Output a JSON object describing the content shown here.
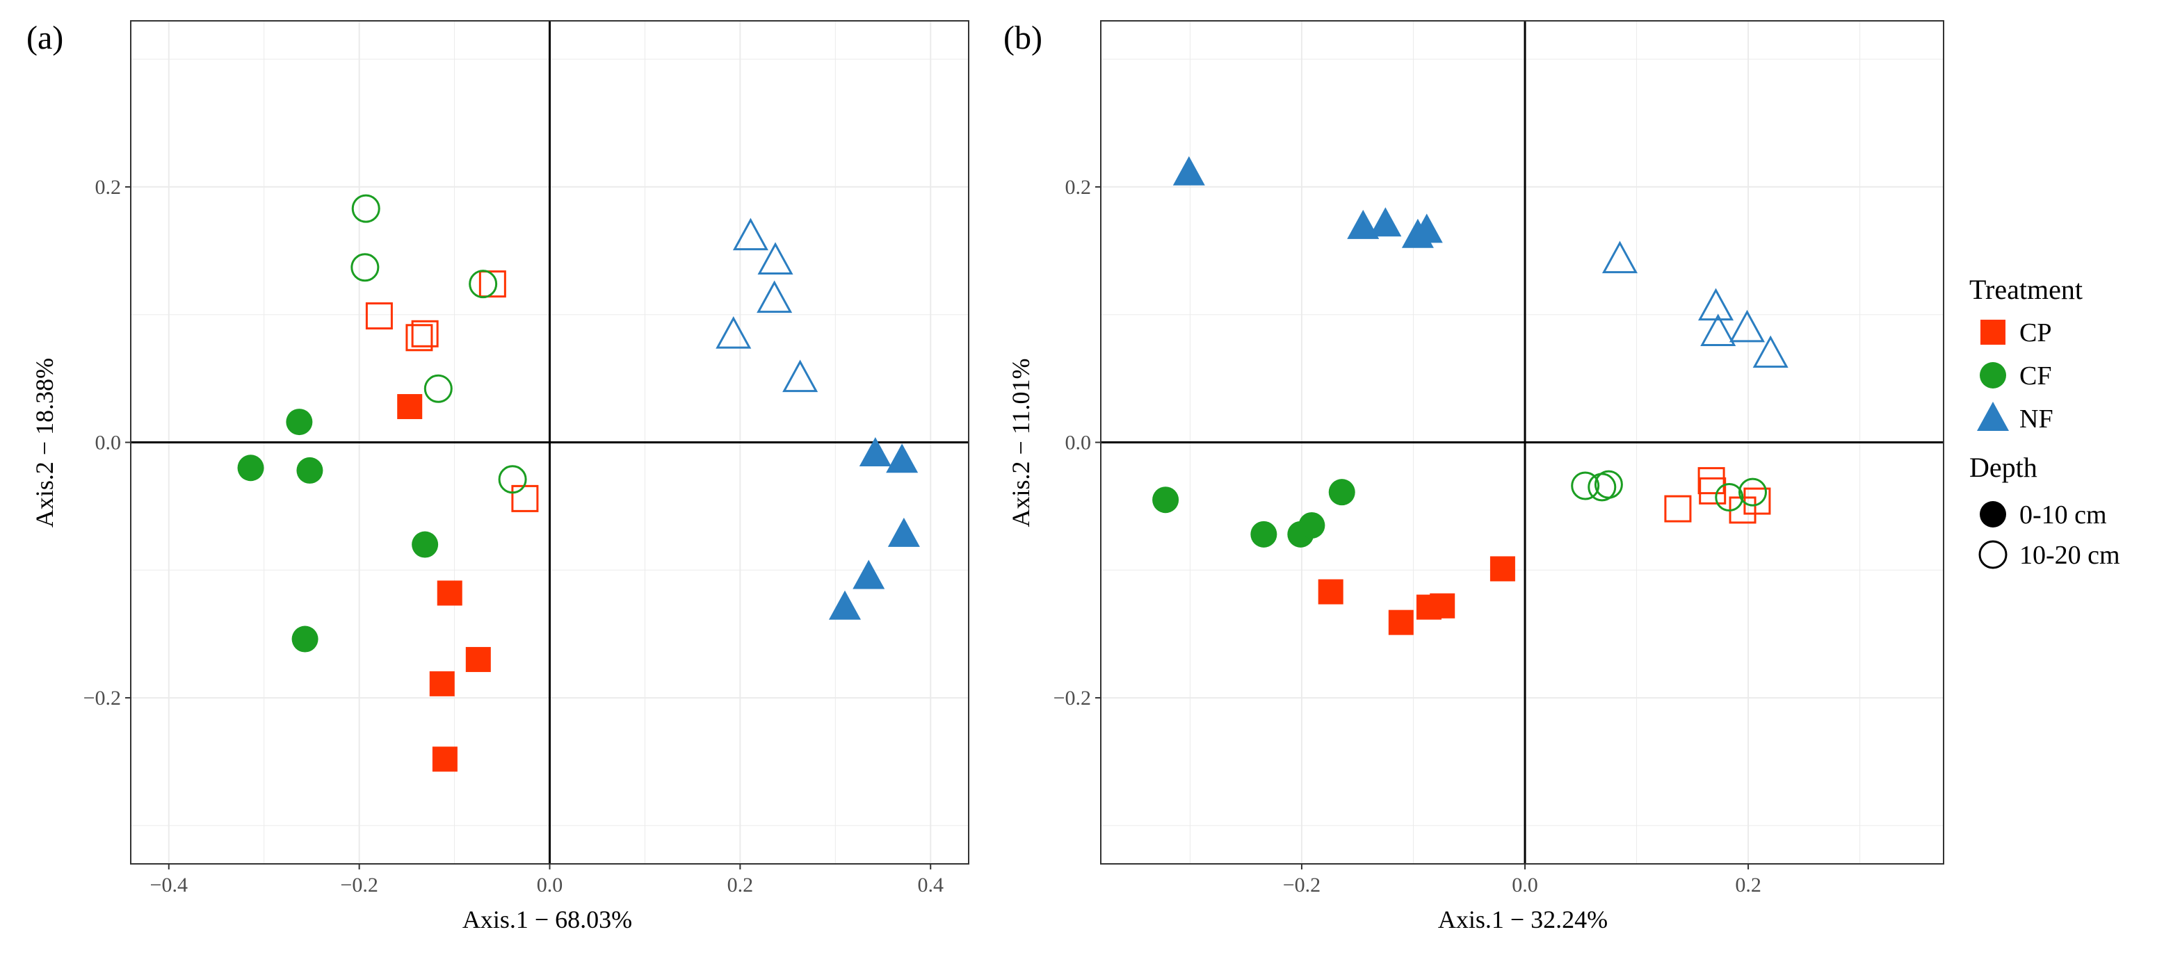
{
  "figure": {
    "treatment_colors": {
      "CP": "#FF3300",
      "CF": "#1B9E22",
      "NF": "#2B7EC1"
    },
    "legend": {
      "treatment_title": "Treatment",
      "treatments": [
        {
          "key": "CP",
          "label": "CP",
          "shape": "square"
        },
        {
          "key": "CF",
          "label": "CF",
          "shape": "circle"
        },
        {
          "key": "NF",
          "label": "NF",
          "shape": "triangle"
        }
      ],
      "depth_title": "Depth",
      "depths": [
        {
          "label": "0-10 cm",
          "filled": true
        },
        {
          "label": "10-20 cm",
          "filled": false
        }
      ]
    }
  },
  "chart_data": [
    {
      "type": "scatter",
      "panel_label": "(a)",
      "xlabel": "Axis.1 − 68.03%",
      "ylabel": "Axis.2 − 18.38%",
      "xlim": [
        -0.44,
        0.44
      ],
      "ylim": [
        -0.33,
        0.33
      ],
      "xticks": [
        -0.4,
        -0.2,
        0.0,
        0.2,
        0.4
      ],
      "xtick_labels": [
        "−0.4",
        "−0.2",
        "0.0",
        "0.2",
        "0.4"
      ],
      "yticks": [
        -0.2,
        0.0,
        0.2
      ],
      "ytick_labels": [
        "−0.2",
        "0.0",
        "0.2"
      ],
      "grid": true,
      "reference_lines": {
        "x": 0,
        "y": 0
      },
      "points": [
        {
          "treatment": "CP",
          "depth": "0-10 cm",
          "x": -0.147,
          "y": 0.028
        },
        {
          "treatment": "CP",
          "depth": "0-10 cm",
          "x": -0.105,
          "y": -0.118
        },
        {
          "treatment": "CP",
          "depth": "0-10 cm",
          "x": -0.075,
          "y": -0.17
        },
        {
          "treatment": "CP",
          "depth": "0-10 cm",
          "x": -0.113,
          "y": -0.189
        },
        {
          "treatment": "CP",
          "depth": "0-10 cm",
          "x": -0.11,
          "y": -0.248
        },
        {
          "treatment": "CP",
          "depth": "10-20 cm",
          "x": -0.179,
          "y": 0.099
        },
        {
          "treatment": "CP",
          "depth": "10-20 cm",
          "x": -0.137,
          "y": 0.082
        },
        {
          "treatment": "CP",
          "depth": "10-20 cm",
          "x": -0.131,
          "y": 0.085
        },
        {
          "treatment": "CP",
          "depth": "10-20 cm",
          "x": -0.06,
          "y": 0.124
        },
        {
          "treatment": "CP",
          "depth": "10-20 cm",
          "x": -0.026,
          "y": -0.044
        },
        {
          "treatment": "CF",
          "depth": "0-10 cm",
          "x": -0.263,
          "y": 0.016
        },
        {
          "treatment": "CF",
          "depth": "0-10 cm",
          "x": -0.314,
          "y": -0.02
        },
        {
          "treatment": "CF",
          "depth": "0-10 cm",
          "x": -0.252,
          "y": -0.022
        },
        {
          "treatment": "CF",
          "depth": "0-10 cm",
          "x": -0.131,
          "y": -0.08
        },
        {
          "treatment": "CF",
          "depth": "0-10 cm",
          "x": -0.257,
          "y": -0.154
        },
        {
          "treatment": "CF",
          "depth": "10-20 cm",
          "x": -0.193,
          "y": 0.183
        },
        {
          "treatment": "CF",
          "depth": "10-20 cm",
          "x": -0.194,
          "y": 0.137
        },
        {
          "treatment": "CF",
          "depth": "10-20 cm",
          "x": -0.07,
          "y": 0.124
        },
        {
          "treatment": "CF",
          "depth": "10-20 cm",
          "x": -0.117,
          "y": 0.042
        },
        {
          "treatment": "CF",
          "depth": "10-20 cm",
          "x": -0.039,
          "y": -0.029
        },
        {
          "treatment": "NF",
          "depth": "0-10 cm",
          "x": 0.342,
          "y": -0.009
        },
        {
          "treatment": "NF",
          "depth": "0-10 cm",
          "x": 0.37,
          "y": -0.014
        },
        {
          "treatment": "NF",
          "depth": "0-10 cm",
          "x": 0.372,
          "y": -0.072
        },
        {
          "treatment": "NF",
          "depth": "0-10 cm",
          "x": 0.335,
          "y": -0.105
        },
        {
          "treatment": "NF",
          "depth": "0-10 cm",
          "x": 0.31,
          "y": -0.129
        },
        {
          "treatment": "NF",
          "depth": "10-20 cm",
          "x": 0.211,
          "y": 0.161
        },
        {
          "treatment": "NF",
          "depth": "10-20 cm",
          "x": 0.237,
          "y": 0.142
        },
        {
          "treatment": "NF",
          "depth": "10-20 cm",
          "x": 0.236,
          "y": 0.112
        },
        {
          "treatment": "NF",
          "depth": "10-20 cm",
          "x": 0.193,
          "y": 0.084
        },
        {
          "treatment": "NF",
          "depth": "10-20 cm",
          "x": 0.263,
          "y": 0.05
        }
      ]
    },
    {
      "type": "scatter",
      "panel_label": "(b)",
      "xlabel": "Axis.1 − 32.24%",
      "ylabel": "Axis.2 − 11.01%",
      "xlim": [
        -0.38,
        0.375
      ],
      "ylim": [
        -0.33,
        0.33
      ],
      "xticks": [
        -0.2,
        0.0,
        0.2
      ],
      "xtick_labels": [
        "−0.2",
        "0.0",
        "0.2"
      ],
      "yticks": [
        -0.2,
        0.0,
        0.2
      ],
      "ytick_labels": [
        "−0.2",
        "0.0",
        "0.2"
      ],
      "grid": true,
      "reference_lines": {
        "x": 0,
        "y": 0
      },
      "points": [
        {
          "treatment": "CP",
          "depth": "0-10 cm",
          "x": -0.174,
          "y": -0.117
        },
        {
          "treatment": "CP",
          "depth": "0-10 cm",
          "x": -0.111,
          "y": -0.141
        },
        {
          "treatment": "CP",
          "depth": "0-10 cm",
          "x": -0.086,
          "y": -0.129
        },
        {
          "treatment": "CP",
          "depth": "0-10 cm",
          "x": -0.074,
          "y": -0.128
        },
        {
          "treatment": "CP",
          "depth": "0-10 cm",
          "x": -0.02,
          "y": -0.099
        },
        {
          "treatment": "CP",
          "depth": "10-20 cm",
          "x": 0.137,
          "y": -0.052
        },
        {
          "treatment": "CP",
          "depth": "10-20 cm",
          "x": 0.167,
          "y": -0.03
        },
        {
          "treatment": "CP",
          "depth": "10-20 cm",
          "x": 0.168,
          "y": -0.038
        },
        {
          "treatment": "CP",
          "depth": "10-20 cm",
          "x": 0.195,
          "y": -0.053
        },
        {
          "treatment": "CP",
          "depth": "10-20 cm",
          "x": 0.208,
          "y": -0.046
        },
        {
          "treatment": "CF",
          "depth": "0-10 cm",
          "x": -0.322,
          "y": -0.045
        },
        {
          "treatment": "CF",
          "depth": "0-10 cm",
          "x": -0.234,
          "y": -0.072
        },
        {
          "treatment": "CF",
          "depth": "0-10 cm",
          "x": -0.201,
          "y": -0.072
        },
        {
          "treatment": "CF",
          "depth": "0-10 cm",
          "x": -0.191,
          "y": -0.065
        },
        {
          "treatment": "CF",
          "depth": "0-10 cm",
          "x": -0.164,
          "y": -0.039
        },
        {
          "treatment": "CF",
          "depth": "10-20 cm",
          "x": 0.054,
          "y": -0.034
        },
        {
          "treatment": "CF",
          "depth": "10-20 cm",
          "x": 0.069,
          "y": -0.035
        },
        {
          "treatment": "CF",
          "depth": "10-20 cm",
          "x": 0.075,
          "y": -0.033
        },
        {
          "treatment": "CF",
          "depth": "10-20 cm",
          "x": 0.183,
          "y": -0.043
        },
        {
          "treatment": "CF",
          "depth": "10-20 cm",
          "x": 0.204,
          "y": -0.039
        },
        {
          "treatment": "NF",
          "depth": "0-10 cm",
          "x": -0.301,
          "y": 0.211
        },
        {
          "treatment": "NF",
          "depth": "0-10 cm",
          "x": -0.145,
          "y": 0.169
        },
        {
          "treatment": "NF",
          "depth": "0-10 cm",
          "x": -0.125,
          "y": 0.171
        },
        {
          "treatment": "NF",
          "depth": "0-10 cm",
          "x": -0.096,
          "y": 0.162
        },
        {
          "treatment": "NF",
          "depth": "0-10 cm",
          "x": -0.088,
          "y": 0.166
        },
        {
          "treatment": "NF",
          "depth": "10-20 cm",
          "x": 0.085,
          "y": 0.143
        },
        {
          "treatment": "NF",
          "depth": "10-20 cm",
          "x": 0.171,
          "y": 0.106
        },
        {
          "treatment": "NF",
          "depth": "10-20 cm",
          "x": 0.173,
          "y": 0.086
        },
        {
          "treatment": "NF",
          "depth": "10-20 cm",
          "x": 0.199,
          "y": 0.089
        },
        {
          "treatment": "NF",
          "depth": "10-20 cm",
          "x": 0.22,
          "y": 0.069
        }
      ]
    }
  ]
}
